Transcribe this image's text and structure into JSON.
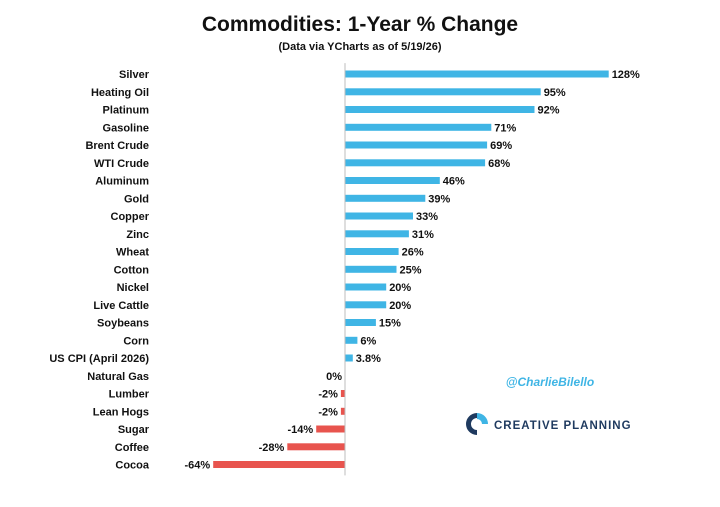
{
  "chart_data": {
    "type": "bar",
    "orientation": "horizontal",
    "title": "Commodities: 1-Year % Change",
    "subtitle": "(Data via YCharts as of 5/19/26)",
    "categories": [
      "Silver",
      "Heating Oil",
      "Platinum",
      "Gasoline",
      "Brent Crude",
      "WTI Crude",
      "Aluminum",
      "Gold",
      "Copper",
      "Zinc",
      "Wheat",
      "Cotton",
      "Nickel",
      "Live Cattle",
      "Soybeans",
      "Corn",
      "US CPI (April 2026)",
      "Natural Gas",
      "Lumber",
      "Lean Hogs",
      "Sugar",
      "Coffee",
      "Cocoa"
    ],
    "values": [
      128,
      95,
      92,
      71,
      69,
      68,
      46,
      39,
      33,
      31,
      26,
      25,
      20,
      20,
      15,
      6,
      3.8,
      0,
      -2,
      -2,
      -14,
      -28,
      -64
    ],
    "labels": [
      "128%",
      "95%",
      "92%",
      "71%",
      "69%",
      "68%",
      "46%",
      "39%",
      "33%",
      "31%",
      "26%",
      "25%",
      "20%",
      "20%",
      "15%",
      "6%",
      "3.8%",
      "0%",
      "-2%",
      "-2%",
      "-14%",
      "-28%",
      "-64%"
    ],
    "xlim": [
      -64,
      128
    ],
    "grid": false,
    "positive_color": "#3FB5E5",
    "negative_color": "#E8544E"
  },
  "annotations": {
    "handle": "@CharlieBilello",
    "handle_color": "#3FB5E5",
    "brand": "CREATIVE PLANNING",
    "brand_color": "#1F3A5F",
    "brand_icon": "creative-planning-logo-icon"
  }
}
